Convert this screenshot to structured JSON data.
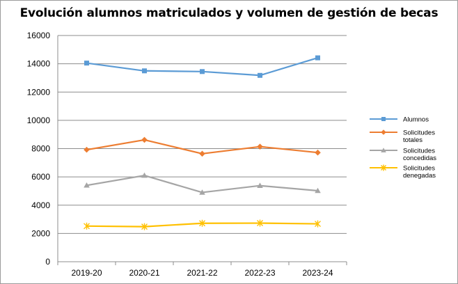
{
  "chart_data": {
    "type": "line",
    "title": "Evolución alumnos matriculados y volumen de gestión de becas",
    "xlabel": "",
    "ylabel": "",
    "categories": [
      "2019-20",
      "2020-21",
      "2021-22",
      "2022-23",
      "2023-24"
    ],
    "ylim": [
      0,
      16000
    ],
    "yticks": [
      0,
      2000,
      4000,
      6000,
      8000,
      10000,
      12000,
      14000,
      16000
    ],
    "grid": true,
    "legend_position": "right",
    "series": [
      {
        "name": "Alumnos",
        "legend_lines": [
          "Alumnos"
        ],
        "color": "#5b9bd5",
        "marker": "square",
        "values": [
          14050,
          13500,
          13450,
          13180,
          14420
        ]
      },
      {
        "name": "Solicitudes totales",
        "legend_lines": [
          "Solicitudes",
          "totales"
        ],
        "color": "#ed7d31",
        "marker": "diamond",
        "values": [
          7920,
          8620,
          7640,
          8140,
          7720
        ]
      },
      {
        "name": "Solicitudes concedidas",
        "legend_lines": [
          "Solicitudes",
          "concedidas"
        ],
        "color": "#a5a5a5",
        "marker": "triangle",
        "values": [
          5400,
          6100,
          4900,
          5380,
          5020
        ]
      },
      {
        "name": "Solicitudes denegadas",
        "legend_lines": [
          "Solicitudes",
          "denegadas"
        ],
        "color": "#ffc000",
        "marker": "asterisk",
        "values": [
          2520,
          2480,
          2720,
          2730,
          2680
        ]
      }
    ]
  }
}
